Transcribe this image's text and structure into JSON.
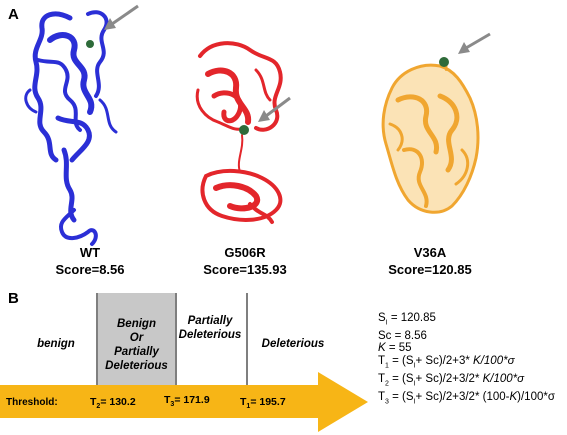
{
  "panel_a": {
    "letter": "A",
    "structures": [
      {
        "name": "WT",
        "score": "Score=8.56",
        "color": "#2b2fd6",
        "icon": "protein-ribbon-blue"
      },
      {
        "name": "G506R",
        "score": "Score=135.93",
        "color": "#e3262b",
        "icon": "protein-ribbon-red"
      },
      {
        "name": "V36A",
        "score": "Score=120.85",
        "color": "#f0a630",
        "icon": "protein-ribbon-orange"
      }
    ],
    "marker_color": "#2e6b3a",
    "arrow_color": "#8a8a8a"
  },
  "panel_b": {
    "letter": "B",
    "categories": [
      {
        "label": "benign"
      },
      {
        "label": "Benign\nOr\nPartially\nDeleterious",
        "highlight": "#c8c8c8"
      },
      {
        "label": "Partially\nDeleterious"
      },
      {
        "label": "Deleterious"
      }
    ],
    "threshold": {
      "label": "Threshold:",
      "t2": {
        "main": "T",
        "sub": "2",
        "rest": "= 130.2"
      },
      "t3": {
        "main": "T",
        "sub": "3",
        "rest": "= 171.9"
      },
      "t1": {
        "main": "T",
        "sub": "1",
        "rest": "= 195.7"
      }
    },
    "arrow_color": "#f7b516",
    "formulas": {
      "si": {
        "a": "S",
        "a_sub": "I",
        "b": " = 120.85"
      },
      "sc": "Sc = 8.56",
      "k": {
        "k": "K",
        "b": " = 55"
      },
      "t1": {
        "t": "T",
        "t_sub": "1",
        "a": " = (S",
        "s_sub": "I",
        "b": "+ Sc)/2+3* ",
        "k": "K/100*σ"
      },
      "t2": {
        "t": "T",
        "t_sub": "2",
        "a": " = (S",
        "s_sub": "I",
        "b": "+ Sc)/2+3/2* ",
        "k": "K/100*σ"
      },
      "t3": {
        "t": "T",
        "t_sub": "3",
        "a": " = (S",
        "s_sub": "I",
        "b": "+ Sc)/2+3/2* (100-",
        "k": "K",
        "c": ")/100*σ"
      }
    }
  }
}
